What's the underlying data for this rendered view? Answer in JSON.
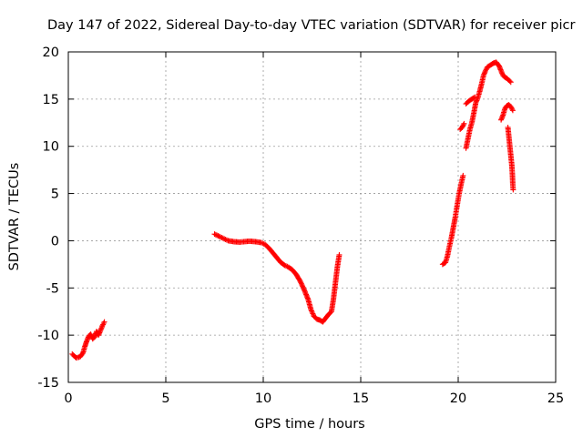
{
  "chart_data": {
    "type": "scatter",
    "title": "Day 147 of 2022, Sidereal Day-to-day VTEC variation (SDTVAR) for receiver picr",
    "xlabel": "GPS time / hours",
    "ylabel": "SDTVAR / TECUs",
    "xlim": [
      0,
      25
    ],
    "ylim": [
      -15,
      20
    ],
    "x_ticks": [
      0,
      5,
      10,
      15,
      20,
      25
    ],
    "y_ticks": [
      -15,
      -10,
      -5,
      0,
      5,
      10,
      15,
      20
    ],
    "x_tick_labels": [
      "0",
      "5",
      "10",
      "15",
      "20",
      "25"
    ],
    "y_tick_labels": [
      "-15",
      "-10",
      "-5",
      "0",
      "5",
      "10",
      "15",
      "20"
    ],
    "grid": true,
    "marker": "plus",
    "series": [
      {
        "name": "SDTVAR",
        "color": "#ff0000",
        "segments": [
          [
            [
              0.2,
              -12.0
            ],
            [
              0.4,
              -12.4
            ],
            [
              0.6,
              -12.3
            ],
            [
              0.75,
              -11.9
            ],
            [
              0.85,
              -11.2
            ],
            [
              0.95,
              -10.6
            ],
            [
              1.05,
              -10.1
            ],
            [
              1.15,
              -9.9
            ],
            [
              1.25,
              -10.4
            ],
            [
              1.35,
              -10.2
            ],
            [
              1.45,
              -9.6
            ],
            [
              1.55,
              -10.0
            ],
            [
              1.65,
              -9.5
            ],
            [
              1.75,
              -9.0
            ],
            [
              1.85,
              -8.6
            ]
          ],
          [
            [
              7.5,
              0.7
            ],
            [
              7.8,
              0.4
            ],
            [
              8.0,
              0.2
            ],
            [
              8.2,
              0.0
            ],
            [
              8.5,
              -0.1
            ],
            [
              8.8,
              -0.15
            ],
            [
              9.0,
              -0.1
            ],
            [
              9.3,
              -0.05
            ],
            [
              9.6,
              -0.1
            ],
            [
              9.9,
              -0.2
            ],
            [
              10.1,
              -0.4
            ],
            [
              10.3,
              -0.8
            ],
            [
              10.5,
              -1.3
            ],
            [
              10.7,
              -1.8
            ],
            [
              10.9,
              -2.3
            ],
            [
              11.1,
              -2.6
            ],
            [
              11.3,
              -2.8
            ],
            [
              11.5,
              -3.1
            ],
            [
              11.7,
              -3.6
            ],
            [
              11.9,
              -4.3
            ],
            [
              12.1,
              -5.2
            ],
            [
              12.3,
              -6.2
            ],
            [
              12.45,
              -7.3
            ],
            [
              12.6,
              -8.0
            ],
            [
              12.75,
              -8.3
            ],
            [
              12.9,
              -8.4
            ],
            [
              13.05,
              -8.6
            ],
            [
              13.2,
              -8.2
            ],
            [
              13.35,
              -7.8
            ],
            [
              13.5,
              -7.5
            ],
            [
              13.6,
              -6.2
            ],
            [
              13.7,
              -4.5
            ],
            [
              13.8,
              -2.8
            ],
            [
              13.9,
              -1.5
            ]
          ],
          [
            [
              19.2,
              -2.5
            ],
            [
              19.35,
              -2.3
            ],
            [
              19.45,
              -1.6
            ],
            [
              19.55,
              -0.6
            ],
            [
              19.65,
              0.3
            ],
            [
              19.75,
              1.4
            ],
            [
              19.85,
              2.5
            ],
            [
              19.95,
              3.8
            ],
            [
              20.05,
              5.0
            ],
            [
              20.15,
              6.0
            ],
            [
              20.25,
              6.9
            ]
          ],
          [
            [
              20.1,
              11.8
            ],
            [
              20.2,
              12.0
            ],
            [
              20.3,
              12.4
            ]
          ],
          [
            [
              20.4,
              9.8
            ],
            [
              20.5,
              10.8
            ],
            [
              20.6,
              11.8
            ],
            [
              20.7,
              12.5
            ],
            [
              20.8,
              13.5
            ],
            [
              20.9,
              14.6
            ],
            [
              21.0,
              15.1
            ],
            [
              21.1,
              15.8
            ],
            [
              21.2,
              16.6
            ],
            [
              21.3,
              17.5
            ],
            [
              21.4,
              18.0
            ],
            [
              21.5,
              18.4
            ],
            [
              21.65,
              18.6
            ],
            [
              21.8,
              18.8
            ],
            [
              21.95,
              18.9
            ],
            [
              22.1,
              18.5
            ],
            [
              22.2,
              18.0
            ],
            [
              22.3,
              17.5
            ],
            [
              22.4,
              17.3
            ],
            [
              22.5,
              17.2
            ],
            [
              22.6,
              17.0
            ],
            [
              22.7,
              16.8
            ]
          ],
          [
            [
              20.4,
              14.5
            ],
            [
              20.55,
              14.8
            ],
            [
              20.7,
              15.0
            ],
            [
              20.85,
              15.2
            ]
          ],
          [
            [
              22.2,
              12.8
            ],
            [
              22.3,
              13.3
            ],
            [
              22.4,
              14.0
            ],
            [
              22.5,
              14.3
            ],
            [
              22.6,
              14.4
            ],
            [
              22.7,
              14.2
            ],
            [
              22.8,
              13.8
            ]
          ],
          [
            [
              22.55,
              12.0
            ],
            [
              22.6,
              11.0
            ],
            [
              22.65,
              10.0
            ],
            [
              22.7,
              9.0
            ],
            [
              22.75,
              8.0
            ],
            [
              22.78,
              7.0
            ],
            [
              22.8,
              6.0
            ],
            [
              22.82,
              5.4
            ]
          ]
        ]
      }
    ]
  }
}
